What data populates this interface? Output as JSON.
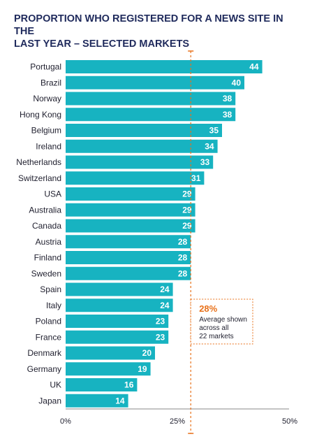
{
  "chart_data": {
    "type": "bar",
    "orientation": "horizontal",
    "title_lines": [
      "Proportion who registered for a news site in the",
      "last year – selected markets"
    ],
    "categories": [
      "Portugal",
      "Brazil",
      "Norway",
      "Hong Kong",
      "Belgium",
      "Ireland",
      "Netherlands",
      "Switzerland",
      "USA",
      "Australia",
      "Canada",
      "Austria",
      "Finland",
      "Sweden",
      "Spain",
      "Italy",
      "Poland",
      "France",
      "Denmark",
      "Germany",
      "UK",
      "Japan"
    ],
    "values": [
      44,
      40,
      38,
      38,
      35,
      34,
      33,
      31,
      29,
      29,
      29,
      28,
      28,
      28,
      24,
      24,
      23,
      23,
      20,
      19,
      16,
      14
    ],
    "value_labels": [
      "44",
      "40",
      "38",
      "38",
      "35",
      "34",
      "33",
      "31",
      "29",
      "29",
      "29",
      "28",
      "28",
      "28",
      "24",
      "24",
      "23",
      "23",
      "20",
      "19",
      "16",
      "14"
    ],
    "xlim": [
      0,
      50
    ],
    "xticks": [
      0,
      25,
      50
    ],
    "xtick_labels": [
      "0%",
      "25%",
      "50%"
    ],
    "reference_line": {
      "value": 28,
      "label": "28%",
      "text_lines": [
        "Average shown",
        "across all",
        "22 markets"
      ]
    },
    "colors": {
      "bar": "#17b3c1",
      "reference": "#e8711a",
      "title": "#1f2a5c"
    },
    "grid": false
  }
}
